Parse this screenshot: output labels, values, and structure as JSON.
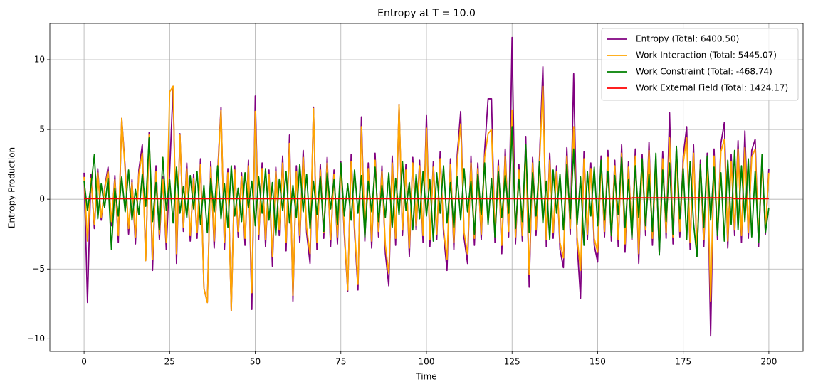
{
  "chart_data": {
    "type": "line",
    "title": "Entropy at T = 10.0",
    "xlabel": "Time",
    "ylabel": "Entropy Production",
    "xlim": [
      -10,
      210
    ],
    "ylim": [
      -10.9,
      12.6
    ],
    "xticks": [
      0,
      25,
      50,
      75,
      100,
      125,
      150,
      175,
      200
    ],
    "yticks": [
      {
        "value": -10,
        "label": "−10"
      },
      {
        "value": -5,
        "label": "−5"
      },
      0,
      5,
      10
    ],
    "grid": true,
    "legend": "upper right",
    "x": [
      0,
      1,
      2,
      3,
      4,
      5,
      6,
      7,
      8,
      9,
      10,
      11,
      12,
      13,
      14,
      15,
      16,
      17,
      18,
      19,
      20,
      21,
      22,
      23,
      24,
      25,
      26,
      27,
      28,
      29,
      30,
      31,
      32,
      33,
      34,
      35,
      36,
      37,
      38,
      39,
      40,
      41,
      42,
      43,
      44,
      45,
      46,
      47,
      48,
      49,
      50,
      51,
      52,
      53,
      54,
      55,
      56,
      57,
      58,
      59,
      60,
      61,
      62,
      63,
      64,
      65,
      66,
      67,
      68,
      69,
      70,
      71,
      72,
      73,
      74,
      75,
      76,
      77,
      78,
      79,
      80,
      81,
      82,
      83,
      84,
      85,
      86,
      87,
      88,
      89,
      90,
      91,
      92,
      93,
      94,
      95,
      96,
      97,
      98,
      99,
      100,
      101,
      102,
      103,
      104,
      105,
      106,
      107,
      108,
      109,
      110,
      111,
      112,
      113,
      114,
      115,
      116,
      117,
      118,
      119,
      120,
      121,
      122,
      123,
      124,
      125,
      126,
      127,
      128,
      129,
      130,
      131,
      132,
      133,
      134,
      135,
      136,
      137,
      138,
      139,
      140,
      141,
      142,
      143,
      144,
      145,
      146,
      147,
      148,
      149,
      150,
      151,
      152,
      153,
      154,
      155,
      156,
      157,
      158,
      159,
      160,
      161,
      162,
      163,
      164,
      165,
      166,
      167,
      168,
      169,
      170,
      171,
      172,
      173,
      174,
      175,
      176,
      177,
      178,
      179,
      180,
      181,
      182,
      183,
      184,
      185,
      186,
      187,
      188,
      189,
      190,
      191,
      192,
      193,
      194,
      195,
      196,
      197,
      198,
      199,
      200
    ],
    "series": [
      {
        "name": "Entropy (Total: 6400.50)",
        "color": "#800080",
        "values": [
          1.9,
          -7.4,
          1.8,
          -2.1,
          2.2,
          -1.5,
          0.8,
          2.3,
          -1.9,
          1.7,
          -3.1,
          5.8,
          2.3,
          -2.5,
          1.4,
          -3.2,
          2.1,
          3.9,
          -4.4,
          4.8,
          -5.1,
          2.4,
          -2.9,
          1.6,
          -3.6,
          2.0,
          8.1,
          -4.6,
          4.7,
          -2.3,
          2.6,
          -3.0,
          1.8,
          -2.8,
          2.9,
          -6.4,
          -7.4,
          2.7,
          -3.5,
          1.9,
          6.6,
          -3.6,
          2.2,
          -8.0,
          2.4,
          -2.7,
          1.9,
          -3.3,
          2.8,
          -7.9,
          7.4,
          -2.9,
          2.6,
          -3.4,
          2.1,
          -4.8,
          2.3,
          -2.6,
          3.1,
          -3.7,
          4.6,
          -7.3,
          2.4,
          -3.1,
          3.5,
          -2.4,
          -4.6,
          6.6,
          -3.6,
          2.5,
          -2.8,
          3.0,
          -3.4,
          2.1,
          -3.2,
          2.7,
          -2.5,
          -6.6,
          3.2,
          -2.4,
          -6.5,
          5.9,
          -3.0,
          2.6,
          -3.5,
          3.3,
          -2.7,
          2.4,
          -3.9,
          -6.2,
          3.1,
          -3.3,
          6.8,
          -2.6,
          2.5,
          -4.1,
          3.0,
          -2.2,
          2.8,
          -3.1,
          6.0,
          -3.4,
          2.7,
          -2.9,
          3.4,
          -2.5,
          -5.1,
          2.9,
          -3.6,
          3.2,
          6.3,
          -2.8,
          -4.6,
          3.1,
          -3.3,
          2.6,
          -2.9,
          3.5,
          7.2,
          7.2,
          -3.1,
          2.8,
          -3.9,
          3.6,
          -2.7,
          11.6,
          -3.2,
          2.5,
          -3.0,
          4.5,
          -6.3,
          3.0,
          -2.6,
          2.9,
          9.5,
          -3.4,
          3.3,
          -2.8,
          2.4,
          -3.6,
          -4.9,
          3.7,
          -2.5,
          9.0,
          -3.2,
          -7.1,
          3.4,
          -2.9,
          2.6,
          -3.3,
          -4.5,
          3.1,
          -2.7,
          3.5,
          -3.0,
          2.8,
          -3.4,
          3.9,
          -3.8,
          2.7,
          -2.9,
          3.6,
          -4.6,
          3.2,
          -2.6,
          4.1,
          -3.3,
          2.9,
          -4.0,
          3.4,
          -2.8,
          6.2,
          -3.2,
          3.7,
          -2.7,
          3.1,
          5.2,
          -3.6,
          3.9,
          -4.1,
          2.8,
          -3.4,
          3.3,
          -9.8,
          3.6,
          -2.9,
          4.0,
          5.5,
          -3.5,
          3.2,
          -2.6,
          4.2,
          -3.1,
          4.9,
          -2.8,
          3.5,
          4.3,
          -3.4,
          3.0,
          -2.5,
          2.2
        ]
      },
      {
        "name": "Work Interaction (Total: 5445.07)",
        "color": "#ffa500",
        "values": [
          1.6,
          -3.0,
          1.5,
          -1.8,
          1.9,
          -1.3,
          0.7,
          2.0,
          -1.6,
          1.4,
          -2.6,
          5.8,
          2.0,
          -2.1,
          1.2,
          -2.7,
          1.8,
          3.3,
          -4.4,
          4.6,
          -4.3,
          2.0,
          -2.5,
          1.4,
          -3.1,
          7.7,
          8.1,
          -3.9,
          4.6,
          -2.0,
          2.2,
          -2.6,
          1.5,
          -2.4,
          2.5,
          -6.4,
          -7.4,
          2.3,
          -3.0,
          1.6,
          6.4,
          -3.1,
          1.9,
          -8.0,
          2.1,
          -2.3,
          1.6,
          -2.8,
          2.4,
          -6.7,
          6.3,
          -2.5,
          2.2,
          -2.9,
          1.8,
          -4.1,
          2.0,
          -2.2,
          2.6,
          -3.1,
          4.0,
          -6.9,
          2.0,
          -2.6,
          3.0,
          -2.0,
          -3.9,
          6.5,
          -3.1,
          2.1,
          -2.4,
          2.6,
          -2.9,
          1.8,
          -2.7,
          2.3,
          -2.1,
          -6.5,
          2.7,
          -2.0,
          -6.1,
          5.2,
          -2.6,
          2.2,
          -3.0,
          2.8,
          -2.3,
          2.0,
          -3.3,
          -5.3,
          2.6,
          -2.8,
          6.8,
          -2.2,
          2.1,
          -3.5,
          2.6,
          -1.9,
          2.4,
          -2.6,
          5.1,
          -2.9,
          2.3,
          -2.5,
          2.9,
          -2.1,
          -4.3,
          2.5,
          -3.1,
          2.7,
          5.4,
          -2.4,
          -3.9,
          2.6,
          -2.8,
          2.2,
          -2.5,
          3.0,
          4.7,
          5.0,
          -2.6,
          2.4,
          -3.3,
          3.1,
          -2.3,
          6.4,
          -2.7,
          2.1,
          -2.6,
          3.8,
          -5.4,
          2.6,
          -2.2,
          2.5,
          8.1,
          -2.9,
          2.8,
          -2.4,
          2.0,
          -3.1,
          -4.2,
          3.1,
          -2.1,
          5.2,
          -2.7,
          -5.1,
          2.9,
          -2.5,
          2.2,
          -2.8,
          -3.8,
          2.6,
          -2.3,
          3.0,
          -2.6,
          2.4,
          -2.9,
          3.3,
          -3.2,
          2.3,
          -2.5,
          3.1,
          -3.9,
          2.7,
          -2.2,
          3.5,
          -2.8,
          2.5,
          -3.4,
          2.9,
          -2.4,
          4.4,
          -2.7,
          3.1,
          -2.3,
          2.6,
          4.4,
          -3.1,
          3.3,
          -3.5,
          2.4,
          -2.9,
          2.8,
          -7.3,
          3.1,
          -2.5,
          3.4,
          4.3,
          -3.0,
          2.7,
          -2.2,
          3.6,
          -2.6,
          3.7,
          -2.4,
          3.0,
          3.6,
          -2.9,
          2.6,
          -2.1,
          1.9
        ]
      },
      {
        "name": "Work Constraint (Total: -468.74)",
        "color": "#008000",
        "values": [
          1.3,
          -0.8,
          0.9,
          3.2,
          -1.4,
          1.1,
          -0.6,
          1.5,
          -3.6,
          0.8,
          -1.2,
          1.6,
          -0.9,
          2.1,
          -1.5,
          0.7,
          -1.1,
          1.8,
          -0.5,
          4.4,
          -1.6,
          1.2,
          -2.2,
          3.0,
          -0.8,
          1.4,
          -1.7,
          2.3,
          -1.0,
          0.9,
          -1.3,
          1.7,
          -0.7,
          2.0,
          -1.8,
          1.0,
          -2.4,
          1.5,
          -0.9,
          2.4,
          -1.4,
          1.1,
          -2.0,
          2.4,
          -1.2,
          0.8,
          -1.6,
          1.9,
          -0.6,
          1.3,
          -1.9,
          1.6,
          -1.0,
          2.2,
          -1.5,
          1.2,
          -2.6,
          1.4,
          -0.8,
          2.0,
          -1.7,
          1.0,
          -1.3,
          2.5,
          -0.9,
          1.8,
          -2.1,
          1.3,
          -1.1,
          1.6,
          -2.3,
          1.9,
          -0.7,
          1.4,
          -1.8,
          2.6,
          -1.2,
          1.1,
          -1.5,
          2.1,
          -1.0,
          1.7,
          -2.7,
          1.3,
          -0.9,
          2.3,
          -1.6,
          1.0,
          -1.3,
          1.9,
          -2.0,
          1.5,
          -1.1,
          2.7,
          -0.8,
          1.2,
          -2.2,
          1.8,
          -1.4,
          2.0,
          -1.2,
          1.4,
          -3.0,
          1.9,
          -1.0,
          2.4,
          -1.7,
          1.2,
          -2.0,
          1.6,
          -1.5,
          2.2,
          -0.9,
          1.3,
          -2.5,
          1.8,
          -1.1,
          2.6,
          -1.8,
          1.5,
          -2.7,
          2.0,
          -1.3,
          1.7,
          -1.0,
          5.2,
          -2.1,
          1.4,
          -1.6,
          3.9,
          -2.4,
          1.9,
          -1.2,
          2.7,
          -1.7,
          1.3,
          -2.9,
          2.1,
          -1.0,
          1.8,
          -2.2,
          2.5,
          -1.4,
          3.6,
          -1.8,
          1.6,
          -3.3,
          2.0,
          -1.2,
          2.3,
          -1.9,
          2.8,
          -1.5,
          2.0,
          -2.6,
          1.7,
          -1.1,
          3.0,
          -2.0,
          1.4,
          -2.8,
          2.4,
          -1.3,
          2.9,
          -1.9,
          1.8,
          -2.3,
          3.3,
          -4.0,
          2.1,
          -1.6,
          2.6,
          -2.5,
          3.8,
          -1.4,
          2.2,
          -2.9,
          2.7,
          -1.7,
          -4.1,
          2.5,
          -2.0,
          3.1,
          -1.5,
          2.3,
          -2.6,
          1.9,
          -3.0,
          2.8,
          -1.8,
          3.5,
          -2.2,
          2.4,
          -1.6,
          2.9,
          -2.7,
          2.0,
          -3.1,
          3.2,
          -2.4,
          -0.6
        ]
      },
      {
        "name": "Work External Field (Total: 1424.17)",
        "color": "#ff0000",
        "values": [
          0.05,
          0.05,
          0.05,
          0.05,
          0.05,
          0.05,
          0.05,
          0.05,
          0.05,
          0.05,
          0.05,
          0.05,
          0.05,
          0.05,
          0.05,
          0.05,
          0.05,
          0.05,
          0.05,
          0.05,
          0.05,
          0.05,
          0.05,
          0.05,
          0.05,
          0.05,
          0.05,
          0.05,
          0.05,
          0.05,
          0.05,
          0.05,
          0.05,
          0.05,
          0.05,
          0.05,
          0.05,
          0.05,
          0.05,
          0.05,
          0.05,
          0.05,
          0.05,
          0.05,
          0.05,
          0.05,
          0.05,
          0.05,
          0.05,
          0.05,
          0.05,
          0.05,
          0.05,
          0.05,
          0.05,
          0.05,
          0.05,
          0.05,
          0.05,
          0.05,
          0.05,
          0.05,
          0.05,
          0.05,
          0.05,
          0.05,
          0.05,
          0.05,
          0.05,
          0.05,
          0.05,
          0.05,
          0.05,
          0.05,
          0.05,
          0.05,
          0.05,
          0.05,
          0.05,
          0.05,
          0.05,
          0.05,
          0.05,
          0.05,
          0.05,
          0.05,
          0.05,
          0.05,
          0.05,
          0.05,
          0.05,
          0.05,
          0.05,
          0.05,
          0.05,
          0.05,
          0.05,
          0.05,
          0.05,
          0.05,
          0.05,
          0.05,
          0.05,
          0.05,
          0.05,
          0.05,
          0.05,
          0.05,
          0.05,
          0.05,
          0.05,
          0.05,
          0.05,
          0.05,
          0.05,
          0.05,
          0.05,
          0.05,
          0.05,
          0.05,
          0.05,
          0.05,
          0.05,
          0.05,
          0.05,
          0.05,
          0.05,
          0.05,
          0.05,
          0.05,
          0.05,
          0.05,
          0.05,
          0.05,
          0.05,
          0.05,
          0.05,
          0.05,
          0.05,
          0.05,
          0.05,
          0.05,
          0.05,
          0.05,
          0.05,
          0.05,
          0.05,
          0.05,
          0.05,
          0.05,
          0.05,
          0.05,
          0.05,
          0.05,
          0.05,
          0.05,
          0.05,
          0.05,
          0.05,
          0.05,
          0.1,
          0.1,
          0.1,
          0.1,
          0.1,
          0.1,
          0.1,
          0.1,
          0.1,
          0.1,
          0.1,
          0.1,
          0.1,
          0.1,
          0.1,
          0.1,
          0.1,
          0.1,
          0.1,
          0.1,
          0.1,
          0.1,
          0.1,
          0.1,
          0.1,
          0.1,
          0.1,
          0.1,
          0.1,
          0.1,
          0.05,
          0.05,
          0.05,
          0.05,
          0.05,
          0.05,
          0.05,
          0.05,
          0.05,
          0.05,
          0.05
        ]
      }
    ]
  }
}
